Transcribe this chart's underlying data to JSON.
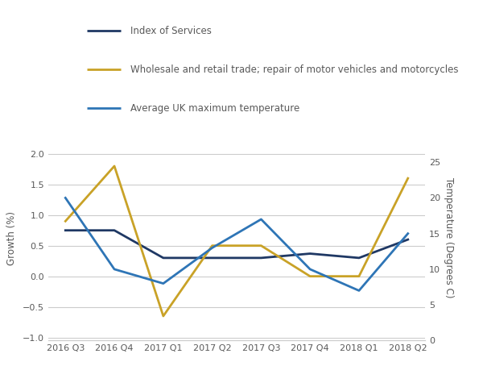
{
  "quarters": [
    "2016 Q3",
    "2016 Q4",
    "2017 Q1",
    "2017 Q2",
    "2017 Q3",
    "2017 Q4",
    "2018 Q1",
    "2018 Q2"
  ],
  "index_of_services": [
    0.75,
    0.75,
    0.3,
    0.3,
    0.3,
    0.37,
    0.3,
    0.6
  ],
  "wholesale_retail": [
    0.9,
    1.8,
    -0.65,
    0.5,
    0.5,
    0.0,
    0.0,
    1.6
  ],
  "avg_uk_temp": [
    20,
    10,
    8,
    13,
    17,
    10,
    7,
    15
  ],
  "left_ylim": [
    -1.05,
    2.3
  ],
  "left_yticks": [
    -1,
    -0.5,
    0,
    0.5,
    1.0,
    1.5,
    2.0
  ],
  "right_ylim": [
    0,
    28.75
  ],
  "right_yticks": [
    0,
    5,
    10,
    15,
    20,
    25
  ],
  "ylabel_left": "Growth (%)",
  "ylabel_right": "Temperature (Degrees C)",
  "color_ios": "#1f3864",
  "color_wr": "#c9a227",
  "color_temp": "#2e75b6",
  "legend_ios": "Index of Services",
  "legend_wr": "Wholesale and retail trade; repair of motor vehicles and motorcycles",
  "legend_temp": "Average UK maximum temperature",
  "bg_color": "#ffffff",
  "grid_color": "#cccccc",
  "text_color": "#595959"
}
